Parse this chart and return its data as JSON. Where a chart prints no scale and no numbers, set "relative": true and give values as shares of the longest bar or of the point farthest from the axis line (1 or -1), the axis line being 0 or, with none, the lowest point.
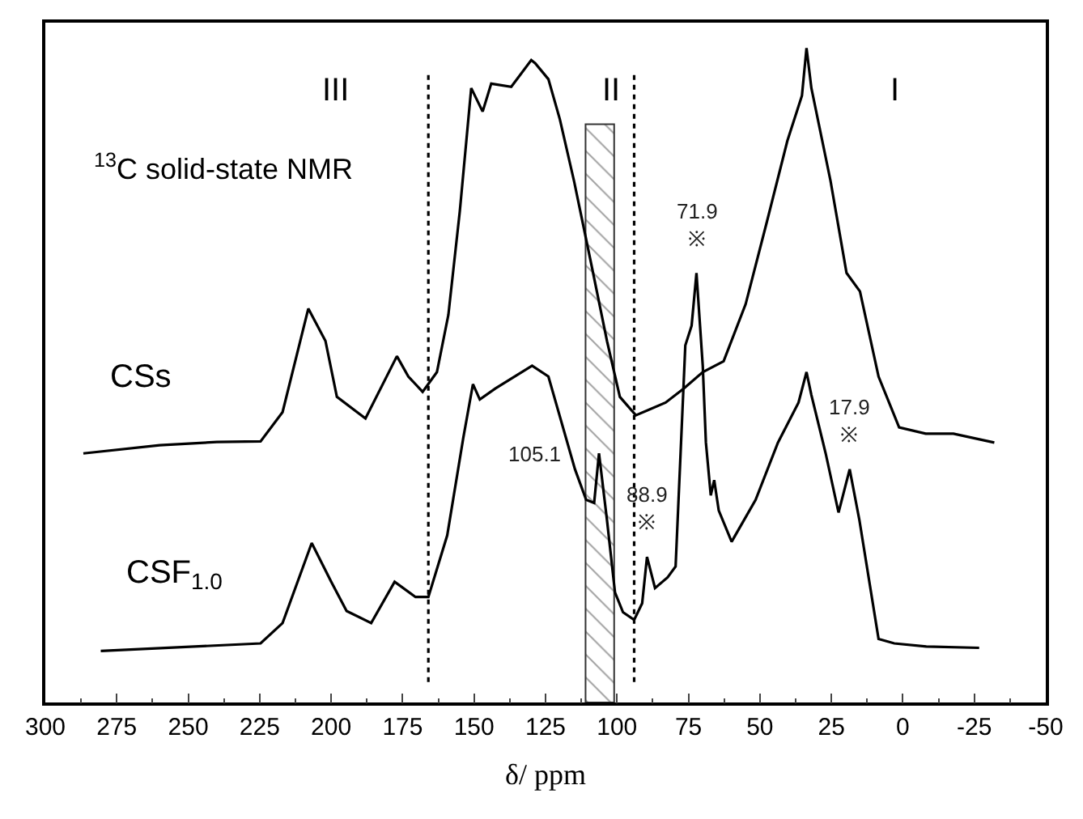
{
  "chart_data": {
    "type": "line",
    "relative": true,
    "xlabel": "δ/ ppm",
    "xlim": [
      300,
      -50
    ],
    "xticks": [
      300,
      275,
      250,
      225,
      200,
      175,
      150,
      125,
      100,
      75,
      50,
      25,
      0,
      -25,
      -50
    ],
    "legend": false,
    "marker": "none",
    "line_style": "solid",
    "series": [
      {
        "name": "CSs",
        "color": "#000000",
        "x": [
          286.7,
          260,
          240,
          224.7,
          217,
          208,
          202,
          198,
          188,
          177,
          173,
          168,
          163,
          159,
          155,
          151,
          147,
          144,
          137,
          130,
          128.6,
          124,
          120,
          115,
          109,
          103.5,
          99,
          93.4,
          83,
          76.7,
          70,
          62.7,
          55,
          47.6,
          40.4,
          35.3,
          33.7,
          32,
          25.3,
          19.7,
          15,
          8.5,
          1.3,
          -8,
          -17.7,
          -32
        ],
        "values": [
          0.362,
          0.375,
          0.38,
          0.381,
          0.427,
          0.59,
          0.539,
          0.451,
          0.417,
          0.515,
          0.483,
          0.459,
          0.49,
          0.58,
          0.743,
          0.937,
          0.9,
          0.944,
          0.939,
          0.981,
          0.976,
          0.951,
          0.888,
          0.79,
          0.66,
          0.539,
          0.451,
          0.422,
          0.442,
          0.464,
          0.49,
          0.507,
          0.597,
          0.726,
          0.854,
          0.925,
          1.0,
          0.937,
          0.791,
          0.646,
          0.617,
          0.483,
          0.403,
          0.393,
          0.393,
          0.379
        ]
      },
      {
        "name": "CSF$_{1.0}$",
        "color": "#000000",
        "x": [
          280.6,
          224.7,
          217,
          206.8,
          200,
          194.6,
          186,
          177.8,
          170.5,
          166,
          159.4,
          153.8,
          150.4,
          148,
          142.6,
          129.7,
          124,
          114.7,
          110.8,
          108,
          106.3,
          103.5,
          100.7,
          97.9,
          94,
          91.2,
          89.5,
          86.7,
          82.3,
          79.5,
          76.1,
          73.9,
          72.2,
          70,
          68.9,
          67.2,
          66,
          64.4,
          59.9,
          51.5,
          43.7,
          36.5,
          33.7,
          32,
          27,
          22.5,
          18.6,
          15.2,
          8.5,
          3,
          -8.2,
          -26.7
        ],
        "values": [
          0.051,
          0.063,
          0.095,
          0.221,
          0.16,
          0.114,
          0.095,
          0.16,
          0.136,
          0.136,
          0.233,
          0.386,
          0.471,
          0.447,
          0.464,
          0.5,
          0.483,
          0.337,
          0.289,
          0.284,
          0.362,
          0.257,
          0.143,
          0.112,
          0.1,
          0.126,
          0.199,
          0.15,
          0.167,
          0.184,
          0.532,
          0.563,
          0.646,
          0.5,
          0.379,
          0.296,
          0.32,
          0.272,
          0.223,
          0.289,
          0.379,
          0.442,
          0.49,
          0.454,
          0.362,
          0.269,
          0.337,
          0.257,
          0.07,
          0.063,
          0.058,
          0.056
        ]
      }
    ],
    "ref_lines": [
      {
        "axis": "x",
        "value": 166,
        "line_style": "dotted"
      },
      {
        "axis": "x",
        "value": 94,
        "line_style": "dotted"
      }
    ],
    "bands": [
      {
        "axis": "x",
        "from": 111,
        "to": 101
      }
    ],
    "annotations": [
      "III",
      "II",
      "I",
      "$^{13}$C solid-state NMR",
      {
        "text": "71.9\n※",
        "x": 72.2,
        "y": 0.646
      },
      {
        "text": "17.9\n※",
        "x": 18.6,
        "y": 0.337
      },
      {
        "text": "88.9\n※",
        "x": 89.5,
        "y": 0.199
      },
      {
        "text": "105.1",
        "x": 106.3,
        "y": 0.362
      }
    ]
  }
}
